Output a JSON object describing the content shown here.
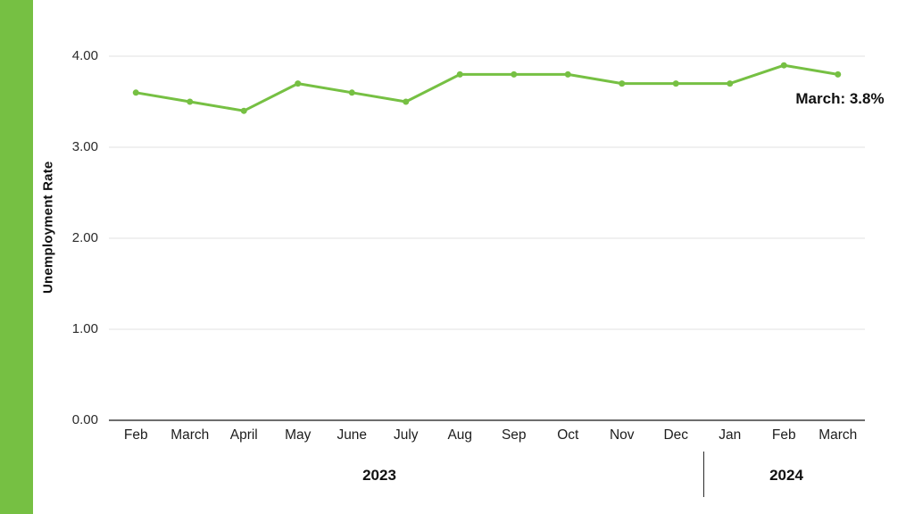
{
  "page": {
    "background": "#ffffff",
    "accent_bar_color": "#76C043"
  },
  "chart_data": {
    "type": "line",
    "title": "",
    "xlabel": "",
    "ylabel": "Unemployment Rate",
    "categories": [
      "Feb",
      "March",
      "April",
      "May",
      "June",
      "July",
      "Aug",
      "Sep",
      "Oct",
      "Nov",
      "Dec",
      "Jan",
      "Feb",
      "March"
    ],
    "series": [
      {
        "name": "Unemployment Rate",
        "values": [
          3.6,
          3.5,
          3.4,
          3.7,
          3.6,
          3.5,
          3.8,
          3.8,
          3.8,
          3.7,
          3.7,
          3.7,
          3.9,
          3.8
        ],
        "color": "#76C043"
      }
    ],
    "ylim": [
      0,
      4
    ],
    "yticks": [
      0,
      1,
      2,
      3,
      4
    ],
    "ytick_labels": [
      "0.00",
      "1.00",
      "2.00",
      "3.00",
      "4.00"
    ],
    "grid": true,
    "legend": false,
    "gridline_color": "#e2e2e2",
    "axis_line_color": "#3d3d3d",
    "annotation": "March: 3.8%",
    "year_groups": [
      {
        "label": "2023",
        "months": 11
      },
      {
        "label": "2024",
        "months": 3
      }
    ]
  }
}
